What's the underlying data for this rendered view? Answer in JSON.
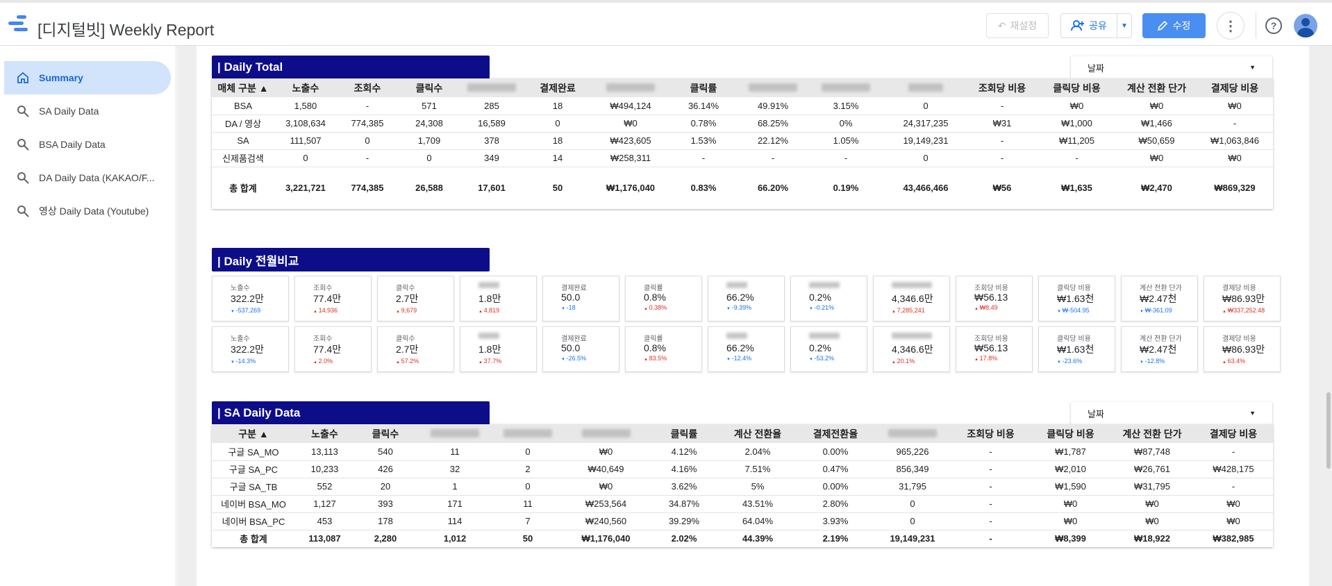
{
  "app": {
    "title": "[디지털빗] Weekly Report",
    "reset_label": "재설정",
    "share_label": "공유",
    "edit_label": "수정",
    "accent": "#4b8ef1",
    "header_bg": "#0d0d8a"
  },
  "sidebar": {
    "items": [
      {
        "label": "Summary",
        "icon": "home-icon"
      },
      {
        "label": "SA Daily Data",
        "icon": "search-icon"
      },
      {
        "label": "BSA Daily Data",
        "icon": "search-icon"
      },
      {
        "label": "DA Daily Data (KAKAO/F...",
        "icon": "search-icon"
      },
      {
        "label": "영상 Daily Data (Youtube)",
        "icon": "search-icon"
      }
    ]
  },
  "daily_total": {
    "title": "| Daily  Total",
    "date_label": "날짜",
    "headers": [
      "매체 구분 ▲",
      "노출수",
      "조회수",
      "클릭수",
      "",
      "결제완료",
      "",
      "클릭률",
      "",
      "",
      "",
      "조회당 비용",
      "클릭당 비용",
      "계산 전환 단가",
      "결제당 비용"
    ],
    "rows": [
      [
        "BSA",
        "1,580",
        "-",
        "571",
        "285",
        "18",
        "₩494,124",
        "36.14%",
        "49.91%",
        "3.15%",
        "0",
        "-",
        "₩0",
        "₩0",
        "₩0"
      ],
      [
        "DA / 영상",
        "3,108,634",
        "774,385",
        "24,308",
        "16,589",
        "0",
        "₩0",
        "0.78%",
        "68.25%",
        "0%",
        "24,317,235",
        "₩31",
        "₩1,000",
        "₩1,466",
        "-"
      ],
      [
        "SA",
        "111,507",
        "0",
        "1,709",
        "378",
        "18",
        "₩423,605",
        "1.53%",
        "22.12%",
        "1.05%",
        "19,149,231",
        "-",
        "₩11,205",
        "₩50,659",
        "₩1,063,846"
      ],
      [
        "신제품검색",
        "0",
        "-",
        "0",
        "349",
        "14",
        "₩258,311",
        "-",
        "-",
        "-",
        "0",
        "-",
        "-",
        "₩0",
        "₩0"
      ]
    ],
    "total": [
      "총 합계",
      "3,221,721",
      "774,385",
      "26,588",
      "17,601",
      "50",
      "₩1,176,040",
      "0.83%",
      "66.20%",
      "0.19%",
      "43,466,466",
      "₩56",
      "₩1,635",
      "₩2,470",
      "₩869,329"
    ]
  },
  "daily_compare": {
    "title": "| Daily  전월비교",
    "row1": [
      {
        "label": "노출수",
        "value": "322.2만",
        "delta": "-537,269",
        "dir": "dn"
      },
      {
        "label": "조회수",
        "value": "77.4만",
        "delta": "14,936",
        "dir": "up"
      },
      {
        "label": "클릭수",
        "value": "2.7만",
        "delta": "9,679",
        "dir": "up"
      },
      {
        "label": "",
        "value": "1.8만",
        "delta": "4,819",
        "dir": "up"
      },
      {
        "label": "결제완료",
        "value": "50.0",
        "delta": "-18",
        "dir": "dn"
      },
      {
        "label": "클릭률",
        "value": "0.8%",
        "delta": "0.38%",
        "dir": "up"
      },
      {
        "label": "",
        "value": "66.2%",
        "delta": "-9.39%",
        "dir": "dn"
      },
      {
        "label": "",
        "value": "0.2%",
        "delta": "-0.21%",
        "dir": "dn"
      },
      {
        "label": "",
        "value": "4,346.6만",
        "delta": "7,285,241",
        "dir": "up"
      },
      {
        "label": "조회당 비용",
        "value": "₩56.13",
        "delta": "₩8.49",
        "dir": "up"
      },
      {
        "label": "클릭당 비용",
        "value": "₩1.63천",
        "delta": "₩-504.95",
        "dir": "dn"
      },
      {
        "label": "계산 전환 단가",
        "value": "₩2.47천",
        "delta": "₩-361.09",
        "dir": "dn"
      },
      {
        "label": "결제당 비용",
        "value": "₩86.93만",
        "delta": "₩337,252.48",
        "dir": "up"
      }
    ],
    "row2": [
      {
        "label": "노출수",
        "value": "322.2만",
        "delta": "-14.3%",
        "dir": "dn"
      },
      {
        "label": "조회수",
        "value": "77.4만",
        "delta": "2.0%",
        "dir": "up"
      },
      {
        "label": "클릭수",
        "value": "2.7만",
        "delta": "57.2%",
        "dir": "up"
      },
      {
        "label": "",
        "value": "1.8만",
        "delta": "37.7%",
        "dir": "up"
      },
      {
        "label": "결제완료",
        "value": "50.0",
        "delta": "-26.5%",
        "dir": "dn"
      },
      {
        "label": "클릭률",
        "value": "0.8%",
        "delta": "83.5%",
        "dir": "up"
      },
      {
        "label": "",
        "value": "66.2%",
        "delta": "-12.4%",
        "dir": "dn"
      },
      {
        "label": "",
        "value": "0.2%",
        "delta": "-53.2%",
        "dir": "dn"
      },
      {
        "label": "",
        "value": "4,346.6만",
        "delta": "20.1%",
        "dir": "up"
      },
      {
        "label": "조회당 비용",
        "value": "₩56.13",
        "delta": "17.8%",
        "dir": "up"
      },
      {
        "label": "클릭당 비용",
        "value": "₩1.63천",
        "delta": "-23.6%",
        "dir": "dn"
      },
      {
        "label": "계산 전환 단가",
        "value": "₩2.47천",
        "delta": "-12.8%",
        "dir": "dn"
      },
      {
        "label": "결제당 비용",
        "value": "₩86.93만",
        "delta": "63.4%",
        "dir": "up"
      }
    ]
  },
  "sa_daily": {
    "title": "| SA Daily Data",
    "date_label": "날짜",
    "headers": [
      "구분 ▲",
      "노출수",
      "클릭수",
      "",
      "",
      "",
      "클릭률",
      "계산 전환율",
      "결제전환율",
      "",
      "조회당 비용",
      "클릭당 비용",
      "계산 전환 단가",
      "결제당 비용"
    ],
    "rows": [
      [
        "구글 SA_MO",
        "13,113",
        "540",
        "11",
        "0",
        "₩0",
        "4.12%",
        "2.04%",
        "0.00%",
        "965,226",
        "-",
        "₩1,787",
        "₩87,748",
        "-"
      ],
      [
        "구글 SA_PC",
        "10,233",
        "426",
        "32",
        "2",
        "₩40,649",
        "4.16%",
        "7.51%",
        "0.47%",
        "856,349",
        "-",
        "₩2,010",
        "₩26,761",
        "₩428,175"
      ],
      [
        "구글 SA_TB",
        "552",
        "20",
        "1",
        "0",
        "₩0",
        "3.62%",
        "5%",
        "0.00%",
        "31,795",
        "-",
        "₩1,590",
        "₩31,795",
        "-"
      ],
      [
        "네이버 BSA_MO",
        "1,127",
        "393",
        "171",
        "11",
        "₩253,564",
        "34.87%",
        "43.51%",
        "2.80%",
        "0",
        "-",
        "₩0",
        "₩0",
        "₩0"
      ],
      [
        "네이버 BSA_PC",
        "453",
        "178",
        "114",
        "7",
        "₩240,560",
        "39.29%",
        "64.04%",
        "3.93%",
        "0",
        "-",
        "₩0",
        "₩0",
        "₩0"
      ]
    ],
    "total": [
      "총 합계",
      "113,087",
      "2,280",
      "1,012",
      "50",
      "₩1,176,040",
      "2.02%",
      "44.39%",
      "2.19%",
      "19,149,231",
      "-",
      "₩8,399",
      "₩18,922",
      "₩382,985"
    ]
  }
}
